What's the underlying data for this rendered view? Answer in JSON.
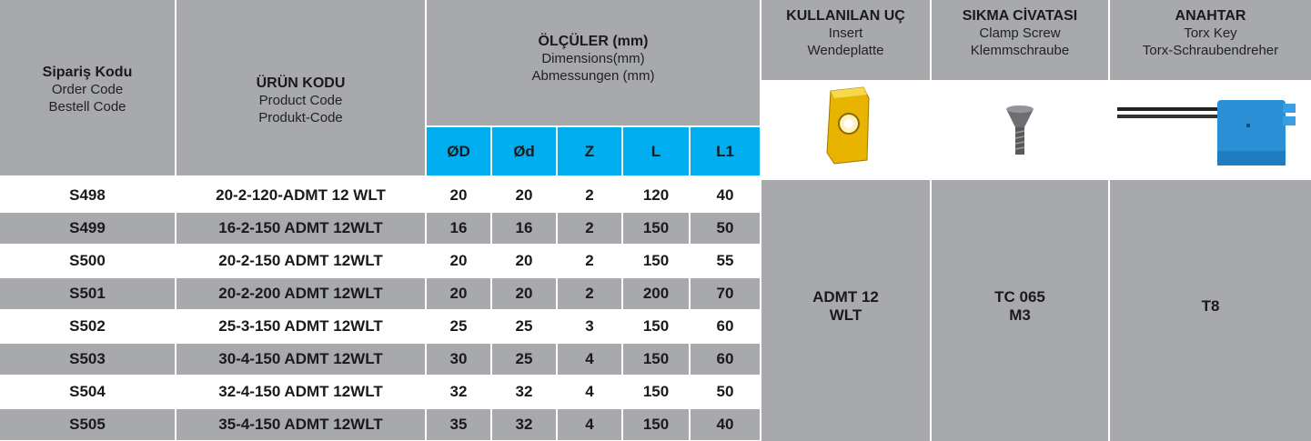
{
  "header": {
    "order_code": {
      "title": "Sipariş Kodu",
      "en": "Order Code",
      "de": "Bestell Code"
    },
    "product_code": {
      "title": "ÜRÜN KODU",
      "en": "Product Code",
      "de": "Produkt-Code"
    },
    "dimensions": {
      "title": "ÖLÇÜLER (mm)",
      "en": "Dimensions(mm)",
      "de": "Abmessungen (mm)",
      "columns": [
        "ØD",
        "Ød",
        "Z",
        "L",
        "L1"
      ]
    },
    "insert": {
      "title": "KULLANILAN UÇ",
      "en": "Insert",
      "de": "Wendeplatte"
    },
    "clamp_screw": {
      "title": "SIKMA CİVATASI",
      "en": "Clamp Screw",
      "de": "Klemmschraube"
    },
    "torx_key": {
      "title": "ANAHTAR",
      "en": "Torx Key",
      "de": "Torx-Schraubendreher"
    }
  },
  "rows": [
    [
      "S498",
      "20-2-120-ADMT 12 WLT",
      20,
      20,
      2,
      120,
      40
    ],
    [
      "S499",
      "16-2-150 ADMT 12WLT",
      16,
      16,
      2,
      150,
      50
    ],
    [
      "S500",
      "20-2-150 ADMT 12WLT",
      20,
      20,
      2,
      150,
      55
    ],
    [
      "S501",
      "20-2-200 ADMT 12WLT",
      20,
      20,
      2,
      200,
      70
    ],
    [
      "S502",
      "25-3-150 ADMT 12WLT",
      25,
      25,
      3,
      150,
      60
    ],
    [
      "S503",
      "30-4-150 ADMT 12WLT",
      30,
      25,
      4,
      150,
      60
    ],
    [
      "S504",
      "32-4-150 ADMT 12WLT",
      32,
      32,
      4,
      150,
      50
    ],
    [
      "S505",
      "35-4-150 ADMT 12WLT",
      35,
      32,
      4,
      150,
      40
    ]
  ],
  "accessories": {
    "insert": [
      "ADMT 12",
      "WLT"
    ],
    "clamp_screw": [
      "TC 065",
      "M3"
    ],
    "torx_key": "T8"
  }
}
